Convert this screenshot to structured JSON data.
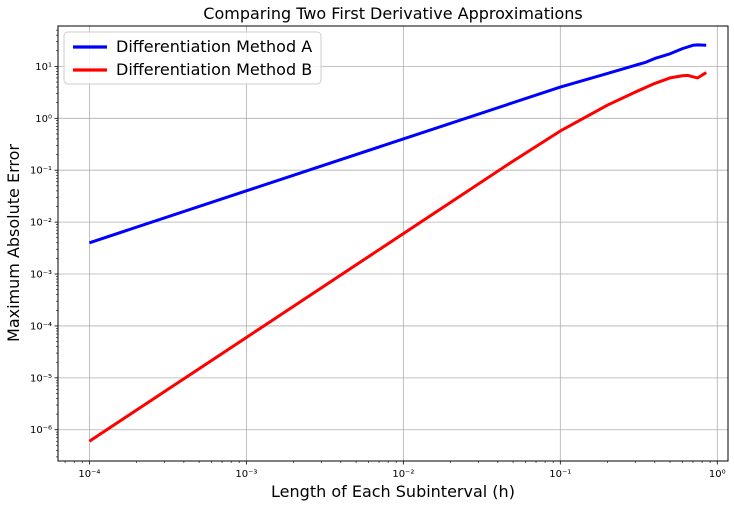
{
  "chart_data": {
    "type": "line",
    "title": "Comparing Two First Derivative Approximations",
    "xlabel": "Length of Each Subinterval (h)",
    "ylabel": "Maximum Absolute Error",
    "xscale": "log",
    "yscale": "log",
    "xlim": [
      6.31e-05,
      1.17
    ],
    "ylim": [
      2.5e-07,
      60
    ],
    "grid": true,
    "legend_position": "top-left",
    "x_ticks": [
      {
        "value": 0.0001,
        "label": "10⁻⁴"
      },
      {
        "value": 0.001,
        "label": "10⁻³"
      },
      {
        "value": 0.01,
        "label": "10⁻²"
      },
      {
        "value": 0.1,
        "label": "10⁻¹"
      },
      {
        "value": 1,
        "label": "10⁰"
      }
    ],
    "y_ticks": [
      {
        "value": 1e-06,
        "label": "10⁻⁶"
      },
      {
        "value": 1e-05,
        "label": "10⁻⁵"
      },
      {
        "value": 0.0001,
        "label": "10⁻⁴"
      },
      {
        "value": 0.001,
        "label": "10⁻³"
      },
      {
        "value": 0.01,
        "label": "10⁻²"
      },
      {
        "value": 0.1,
        "label": "10⁻¹"
      },
      {
        "value": 1,
        "label": "10⁰"
      },
      {
        "value": 10,
        "label": "10¹"
      }
    ],
    "series": [
      {
        "name": "Differentiation Method A",
        "color": "#0000ff",
        "points": [
          [
            0.0001,
            0.004
          ],
          [
            0.001,
            0.04
          ],
          [
            0.01,
            0.4
          ],
          [
            0.1,
            4.0
          ],
          [
            0.2,
            7.3
          ],
          [
            0.3,
            10.5
          ],
          [
            0.35,
            12.0
          ],
          [
            0.4,
            14.2
          ],
          [
            0.5,
            17.5
          ],
          [
            0.6,
            22.0
          ],
          [
            0.7,
            25.5
          ],
          [
            0.75,
            26.0
          ],
          [
            0.85,
            25.5
          ]
        ]
      },
      {
        "name": "Differentiation Method B",
        "color": "#ff0000",
        "points": [
          [
            0.0001,
            6e-07
          ],
          [
            0.0002,
            2.4e-06
          ],
          [
            0.0005,
            1.5e-05
          ],
          [
            0.001,
            6e-05
          ],
          [
            0.002,
            0.00024
          ],
          [
            0.005,
            0.0015
          ],
          [
            0.01,
            0.006
          ],
          [
            0.02,
            0.024
          ],
          [
            0.05,
            0.15
          ],
          [
            0.1,
            0.57
          ],
          [
            0.2,
            1.8
          ],
          [
            0.3,
            3.2
          ],
          [
            0.4,
            4.7
          ],
          [
            0.5,
            6.0
          ],
          [
            0.6,
            6.6
          ],
          [
            0.65,
            6.7
          ],
          [
            0.7,
            6.3
          ],
          [
            0.75,
            6.0
          ],
          [
            0.8,
            6.8
          ],
          [
            0.85,
            7.6
          ]
        ]
      }
    ]
  }
}
